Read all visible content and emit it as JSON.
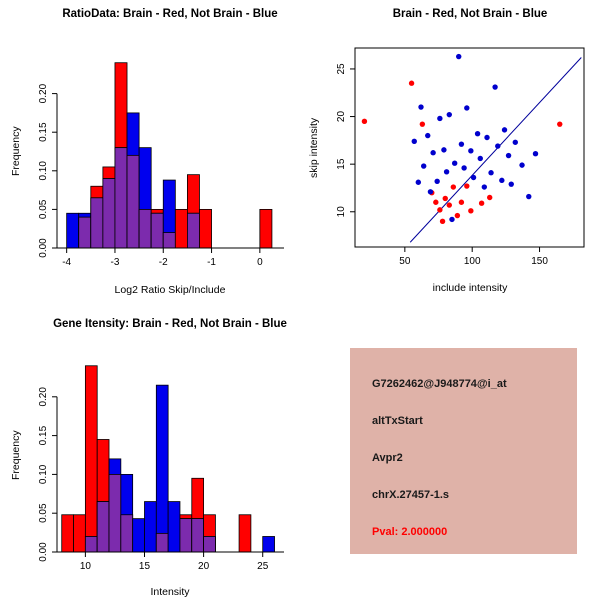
{
  "window": {
    "background": "#ffffff"
  },
  "chart_data": [
    {
      "id": "ratio-hist",
      "type": "bar",
      "subtype": "overlaid-histogram",
      "title": "RatioData: Brain - Red, Not Brain - Blue",
      "xlabel": "Log2 Ratio Skip/Include",
      "ylabel": "Frequency",
      "xlim": [
        -4.2,
        0.5
      ],
      "ylim": [
        0,
        0.25
      ],
      "xticks": [
        -4,
        -3,
        -2,
        -1,
        0
      ],
      "yticks": [
        0,
        0.05,
        0.1,
        0.15,
        0.2
      ],
      "ytick_labels": [
        "0.00",
        "0.05",
        "0.10",
        "0.15",
        "0.20"
      ],
      "bins_start": -4.0,
      "bin_width": 0.25,
      "overlap_color": "#7c2bad",
      "grid": false,
      "series": [
        {
          "name": "Brain",
          "color": "#ff0000",
          "values": [
            0,
            0.04,
            0.08,
            0.105,
            0.24,
            0.12,
            0.05,
            0.05,
            0.02,
            0.05,
            0.095,
            0.05,
            0,
            0,
            0,
            0,
            0.05
          ]
        },
        {
          "name": "Not Brain",
          "color": "#0000ee",
          "values": [
            0.045,
            0.045,
            0.065,
            0.09,
            0.13,
            0.175,
            0.13,
            0.045,
            0.088,
            0,
            0.045,
            0,
            0,
            0,
            0,
            0,
            0
          ]
        }
      ]
    },
    {
      "id": "scatter",
      "type": "scatter",
      "title": "Brain - Red, Not Brain - Blue",
      "xlabel": "include intensity",
      "ylabel": "skip intensity",
      "xlim": [
        13,
        183
      ],
      "ylim": [
        6.3,
        27.2
      ],
      "xticks": [
        50,
        100,
        150
      ],
      "yticks": [
        10,
        15,
        20,
        25
      ],
      "grid": false,
      "line": {
        "x1": 54,
        "y1": 6.8,
        "x2": 181,
        "y2": 26.2,
        "color": "#00009b"
      },
      "series": [
        {
          "name": "Brain",
          "color": "#ff0000",
          "points": [
            [
              20,
              19.5
            ],
            [
              55,
              23.5
            ],
            [
              63,
              19.2
            ],
            [
              70,
              12.0
            ],
            [
              73,
              11.0
            ],
            [
              76,
              10.2
            ],
            [
              78,
              9.0
            ],
            [
              80,
              11.4
            ],
            [
              83,
              10.7
            ],
            [
              86,
              12.6
            ],
            [
              89,
              9.6
            ],
            [
              92,
              11.0
            ],
            [
              96,
              12.7
            ],
            [
              99,
              10.1
            ],
            [
              107,
              10.9
            ],
            [
              113,
              11.5
            ],
            [
              165,
              19.2
            ]
          ]
        },
        {
          "name": "Not Brain",
          "color": "#0000cd",
          "points": [
            [
              57,
              17.4
            ],
            [
              60,
              13.1
            ],
            [
              62,
              21.0
            ],
            [
              64,
              14.8
            ],
            [
              67,
              18.0
            ],
            [
              69,
              12.1
            ],
            [
              71,
              16.2
            ],
            [
              74,
              13.2
            ],
            [
              76,
              19.8
            ],
            [
              79,
              16.5
            ],
            [
              81,
              14.2
            ],
            [
              83,
              20.2
            ],
            [
              85,
              9.2
            ],
            [
              87,
              15.1
            ],
            [
              90,
              26.3
            ],
            [
              92,
              17.1
            ],
            [
              94,
              14.6
            ],
            [
              96,
              20.9
            ],
            [
              99,
              16.4
            ],
            [
              101,
              13.6
            ],
            [
              104,
              18.2
            ],
            [
              106,
              15.6
            ],
            [
              109,
              12.6
            ],
            [
              111,
              17.8
            ],
            [
              114,
              14.1
            ],
            [
              117,
              23.1
            ],
            [
              119,
              16.9
            ],
            [
              122,
              13.3
            ],
            [
              124,
              18.6
            ],
            [
              127,
              15.9
            ],
            [
              129,
              12.9
            ],
            [
              132,
              17.3
            ],
            [
              137,
              14.9
            ],
            [
              142,
              11.6
            ],
            [
              147,
              16.1
            ]
          ]
        }
      ]
    },
    {
      "id": "intensity-hist",
      "type": "bar",
      "subtype": "overlaid-histogram",
      "title": "Gene Itensity: Brain - Red, Not Brain - Blue",
      "xlabel": "Intensity",
      "ylabel": "Frequency",
      "xlim": [
        7.6,
        26.8
      ],
      "ylim": [
        0,
        0.25
      ],
      "xticks": [
        10,
        15,
        20,
        25
      ],
      "yticks": [
        0,
        0.05,
        0.1,
        0.15,
        0.2
      ],
      "ytick_labels": [
        "0.00",
        "0.05",
        "0.10",
        "0.15",
        "0.20"
      ],
      "bins_start": 8,
      "bin_width": 1,
      "overlap_color": "#7c2bad",
      "grid": false,
      "series": [
        {
          "name": "Brain",
          "color": "#ff0000",
          "values": [
            0.048,
            0.048,
            0.24,
            0.145,
            0.1,
            0.048,
            0,
            0,
            0.024,
            0,
            0.048,
            0.095,
            0.048,
            0,
            0,
            0.048,
            0,
            0
          ]
        },
        {
          "name": "Not Brain",
          "color": "#0000ee",
          "values": [
            0,
            0,
            0.02,
            0.065,
            0.12,
            0.1,
            0.043,
            0.065,
            0.215,
            0.065,
            0.043,
            0.043,
            0.02,
            0,
            0,
            0,
            0,
            0.02
          ]
        }
      ]
    }
  ],
  "info_box": {
    "bg_color": "#dfb2a8",
    "text_color": "#1a1a1a",
    "pval_color": "#ff0000",
    "lines": {
      "probe_id": "G7262462@J948774@i_at",
      "event_type": "altTxStart",
      "gene_symbol": "Avpr2",
      "locus": "chrX.27457-1.s",
      "pval": "Pval: 2.000000"
    }
  }
}
